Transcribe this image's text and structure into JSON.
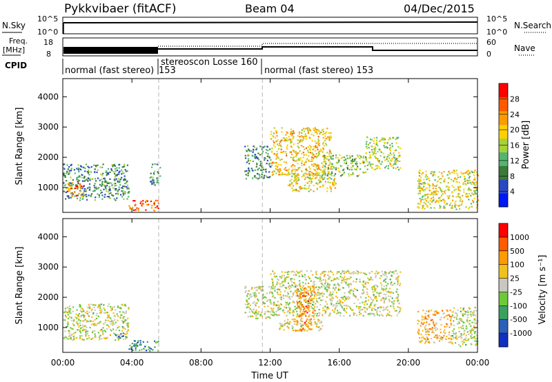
{
  "header": {
    "station": "Pykkvibaer (fitACF)",
    "beam": "Beam 04",
    "date": "04/Dec/2015"
  },
  "status_panels": {
    "nsky_label": "N.Sky",
    "nsky_ticks": [
      "10^5",
      "10^0"
    ],
    "nsearch_label": "N.Search",
    "nsearch_ticks": [
      "10^5",
      "10^0"
    ],
    "freq_label": "Freq.",
    "freq_unit": "[MHz]",
    "freq_ticks": [
      "18",
      "8"
    ],
    "nave_label": "Nave",
    "nave_ticks": [
      "60",
      "0"
    ],
    "cpid_label": "CPID",
    "cpid_segments": [
      {
        "start_hour": 0.0,
        "label": "normal (fast stereo)"
      },
      {
        "start_hour": 5.55,
        "label": "153"
      },
      {
        "start_hour": 5.55,
        "label": "stereoscon Losse 160"
      },
      {
        "start_hour": 11.55,
        "label": "normal (fast stereo) 153"
      }
    ],
    "mode_change_hours": [
      5.55,
      11.55
    ]
  },
  "xaxis": {
    "label": "Time UT",
    "ticks": [
      "00:00",
      "04:00",
      "08:00",
      "12:00",
      "16:00",
      "20:00",
      "00:00"
    ],
    "range_hours": [
      0,
      24
    ]
  },
  "power_panel": {
    "ylabel": "Slant Range [km]",
    "yticks": [
      "1000",
      "2000",
      "3000",
      "4000"
    ],
    "colorbar_label": "Power [dB]",
    "colorbar_ticks": [
      "28",
      "24",
      "20",
      "16",
      "12",
      "8",
      "4"
    ],
    "colors": [
      "#0018f0",
      "#2a48c0",
      "#3a7a3a",
      "#56b470",
      "#a8d038",
      "#ffd000",
      "#ff9a00",
      "#ff5a00",
      "#ff0000"
    ]
  },
  "velocity_panel": {
    "ylabel": "Slant Range [km]",
    "yticks": [
      "1000",
      "2000",
      "3000",
      "4000"
    ],
    "colorbar_label": "Velocity [m s⁻¹]",
    "colorbar_ticks": [
      "1000",
      "500",
      "100",
      "25",
      "-25",
      "-100",
      "-500",
      "-1000"
    ],
    "colors": [
      "#1030c0",
      "#2a60b8",
      "#3aa060",
      "#6ec83a",
      "#c8c8c0",
      "#f0c020",
      "#ff9a00",
      "#ff5a00",
      "#ff0000"
    ]
  },
  "chart_data": [
    {
      "type": "heatmap",
      "title": "Power",
      "xlabel": "Time UT",
      "ylabel": "Slant Range [km]",
      "xlim": [
        0,
        24
      ],
      "ylim": [
        180,
        4600
      ],
      "colorbar_label": "Power [dB]",
      "colorbar_range": [
        0,
        32
      ],
      "regions": [
        {
          "t0": 0.0,
          "t1": 3.8,
          "r0": 600,
          "r1": 1800,
          "level": 10
        },
        {
          "t0": 0.2,
          "t1": 1.2,
          "r0": 700,
          "r1": 1200,
          "level": 24
        },
        {
          "t0": 3.8,
          "t1": 5.55,
          "r0": 250,
          "r1": 600,
          "level": 26
        },
        {
          "t0": 5.0,
          "t1": 5.6,
          "r0": 1100,
          "r1": 1800,
          "level": 10
        },
        {
          "t0": 10.5,
          "t1": 12.0,
          "r0": 1300,
          "r1": 2400,
          "level": 10
        },
        {
          "t0": 12.0,
          "t1": 15.5,
          "r0": 1400,
          "r1": 3000,
          "level": 20
        },
        {
          "t0": 13.0,
          "t1": 15.8,
          "r0": 900,
          "r1": 1500,
          "level": 18
        },
        {
          "t0": 15.0,
          "t1": 17.5,
          "r0": 1400,
          "r1": 2100,
          "level": 14
        },
        {
          "t0": 17.5,
          "t1": 19.5,
          "r0": 1600,
          "r1": 2700,
          "level": 16
        },
        {
          "t0": 20.5,
          "t1": 24.0,
          "r0": 300,
          "r1": 1600,
          "level": 18
        }
      ]
    },
    {
      "type": "heatmap",
      "title": "Velocity",
      "xlabel": "Time UT",
      "ylabel": "Slant Range [km]",
      "xlim": [
        0,
        24
      ],
      "ylim": [
        180,
        4600
      ],
      "colorbar_label": "Velocity [m s⁻¹]",
      "colorbar_range": [
        -1000,
        1000
      ],
      "regions": [
        {
          "t0": 0.0,
          "t1": 3.8,
          "r0": 600,
          "r1": 1800,
          "level": 0
        },
        {
          "t0": 3.0,
          "t1": 3.7,
          "r0": 650,
          "r1": 850,
          "level": -500
        },
        {
          "t0": 3.8,
          "t1": 5.55,
          "r0": 250,
          "r1": 600,
          "level": -500
        },
        {
          "t0": 10.5,
          "t1": 12.0,
          "r0": 1300,
          "r1": 2400,
          "level": 0
        },
        {
          "t0": 12.0,
          "t1": 19.5,
          "r0": 1400,
          "r1": 2900,
          "level": 0
        },
        {
          "t0": 13.5,
          "t1": 14.6,
          "r0": 900,
          "r1": 2400,
          "level": 500
        },
        {
          "t0": 12.5,
          "t1": 15.0,
          "r0": 900,
          "r1": 1300,
          "level": 100
        },
        {
          "t0": 20.5,
          "t1": 22.5,
          "r0": 500,
          "r1": 1600,
          "level": 300
        },
        {
          "t0": 22.5,
          "t1": 24.0,
          "r0": 400,
          "r1": 1700,
          "level": 0
        }
      ]
    }
  ]
}
